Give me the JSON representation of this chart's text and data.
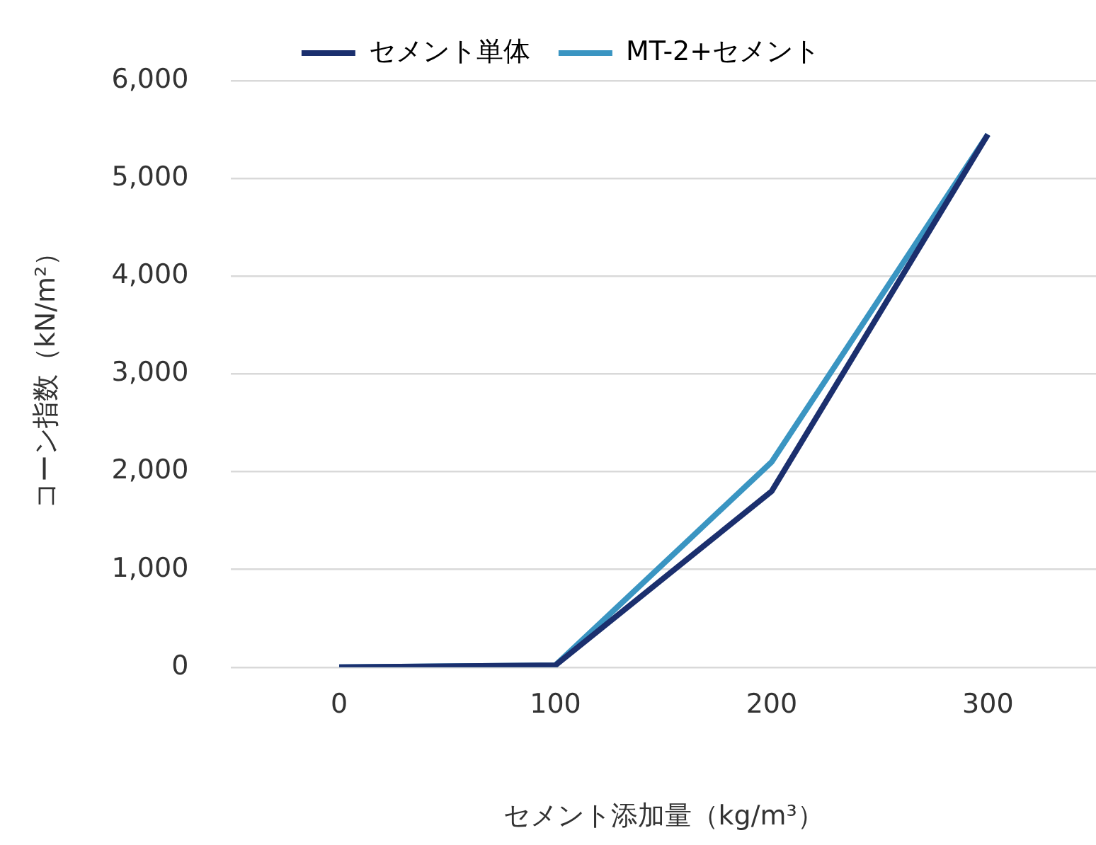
{
  "chart_data": {
    "type": "line",
    "xlabel": "セメント添加量（kg/m³）",
    "ylabel": "コーン指数（kN/m²）",
    "categories": [
      "0",
      "100",
      "200",
      "300"
    ],
    "series": [
      {
        "name": "セメント単体",
        "color": "#1b2f6e",
        "values": [
          0,
          20,
          1800,
          5450
        ]
      },
      {
        "name": "MT-2+セメント",
        "color": "#3a95c2",
        "values": [
          0,
          20,
          2100,
          5450
        ]
      }
    ],
    "ylim": [
      0,
      6000
    ],
    "yticks": [
      0,
      {
        "value": 1000,
        "label": "1,000"
      },
      {
        "value": 2000,
        "label": "2,000"
      },
      {
        "value": 3000,
        "label": "3,000"
      },
      {
        "value": 4000,
        "label": "4,000"
      },
      {
        "value": 5000,
        "label": "5,000"
      },
      {
        "value": 6000,
        "label": "6,000"
      }
    ],
    "grid": "y",
    "legend": "top",
    "marker": "none",
    "line_style": "solid"
  }
}
